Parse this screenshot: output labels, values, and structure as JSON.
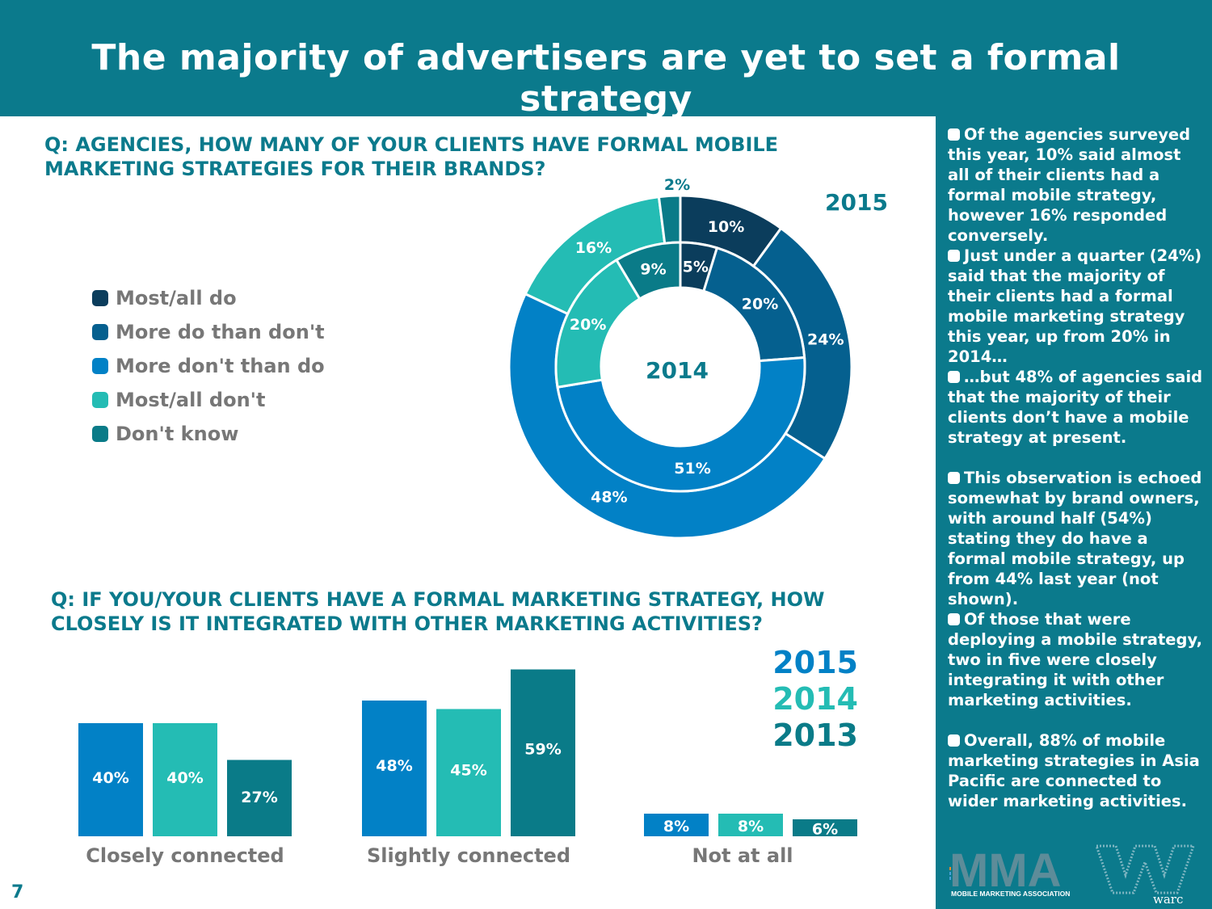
{
  "title": "The majority of advertisers are yet to set a formal strategy",
  "page_number": "7",
  "colors": {
    "header": "#0b7a8c",
    "most_all_do": "#0b3d5c",
    "more_do_than_dont": "#05608f",
    "more_dont_than_do": "#0281c6",
    "most_all_dont": "#24bcb4",
    "dont_know": "#0a7b88"
  },
  "sidebar_notes": [
    "Of the agencies surveyed this year, 10% said almost all of their clients had a formal mobile strategy, however 16% responded conversely.",
    "Just under a quarter (24%) said that the majority of their clients had a formal mobile marketing strategy this year, up from 20% in 2014…",
    "…but 48% of agencies said that the majority of their clients don’t have a mobile strategy at present.",
    "This observation is echoed somewhat by brand owners, with around half (54%) stating they do have a formal mobile strategy, up from 44% last year (not shown).",
    "Of those that were deploying a mobile strategy, two in five were closely integrating it with other marketing activities.",
    "Overall, 88% of mobile marketing strategies in Asia Pacific are connected to wider marketing activities."
  ],
  "logo": {
    "mma": "MMA",
    "mma_sub": "MOBILE MARKETING ASSOCIATION",
    "warc": "warc"
  },
  "chart_data": [
    {
      "type": "donut",
      "title": "Q: AGENCIES, HOW MANY OF YOUR CLIENTS HAVE FORMAL MOBILE MARKETING STRATEGIES FOR THEIR BRANDS?",
      "title_lines": [
        "Q: AGENCIES, HOW MANY OF YOUR CLIENTS HAVE FORMAL MOBILE",
        "MARKETING STRATEGIES FOR THEIR BRANDS?"
      ],
      "categories": [
        "Most/all do",
        "More do than don't",
        "More don't than do",
        "Most/all don't",
        "Don't know"
      ],
      "series": [
        {
          "name": "2015",
          "ring": "outer",
          "values": [
            10,
            24,
            48,
            16,
            2
          ],
          "labels": [
            "10%",
            "24%",
            "48%",
            "16%",
            "2%"
          ]
        },
        {
          "name": "2014",
          "ring": "inner",
          "values": [
            5,
            20,
            51,
            20,
            9
          ],
          "labels": [
            "5%",
            "20%",
            "51%",
            "20%",
            "9%"
          ]
        }
      ],
      "ring_labels": {
        "outer": "2015",
        "inner": "2014"
      }
    },
    {
      "type": "bar",
      "title": "Q: IF YOU/YOUR CLIENTS HAVE A FORMAL MARKETING STRATEGY, HOW CLOSELY IS IT INTEGRATED WITH OTHER MARKETING ACTIVITIES?",
      "title_lines": [
        "Q: IF YOU/YOUR CLIENTS HAVE A FORMAL MARKETING STRATEGY, HOW",
        "CLOSELY IS IT INTEGRATED WITH OTHER MARKETING ACTIVITIES?"
      ],
      "categories": [
        "Closely connected",
        "Slightly connected",
        "Not at all"
      ],
      "series": [
        {
          "name": "2015",
          "values": [
            40,
            48,
            8
          ],
          "labels": [
            "40%",
            "48%",
            "8%"
          ]
        },
        {
          "name": "2014",
          "values": [
            40,
            45,
            8
          ],
          "labels": [
            "40%",
            "45%",
            "8%"
          ]
        },
        {
          "name": "2013",
          "values": [
            27,
            59,
            6
          ],
          "labels": [
            "27%",
            "59%",
            "6%"
          ]
        }
      ],
      "series_colors": [
        "#0281c6",
        "#24bcb4",
        "#0a7b88"
      ],
      "legend_colors": [
        "#0281c6",
        "#24bcb4",
        "#0a7b88"
      ],
      "ylim": [
        0,
        60
      ]
    }
  ]
}
